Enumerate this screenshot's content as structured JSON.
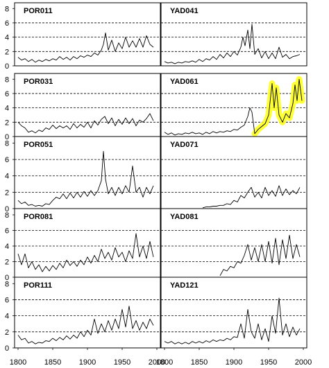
{
  "chart_data": {
    "type": "line",
    "layout": "5 rows x 2 columns of small multiples with shared axes",
    "x_ticks": [
      1800,
      1850,
      1900,
      1950,
      2000
    ],
    "y_ticks": [
      0,
      2,
      4,
      6,
      8
    ],
    "xlim": [
      1795,
      2005
    ],
    "ylim": [
      0,
      8.8
    ],
    "grid": "dashed horizontal lines at y = 2, 4, 6",
    "highlight_color": "#ffff22",
    "panels": [
      {
        "title": "POR011",
        "x": [
          1800,
          1805,
          1810,
          1815,
          1820,
          1825,
          1830,
          1835,
          1840,
          1845,
          1850,
          1855,
          1860,
          1865,
          1870,
          1875,
          1880,
          1885,
          1890,
          1895,
          1900,
          1905,
          1910,
          1915,
          1920,
          1923,
          1926,
          1930,
          1935,
          1940,
          1945,
          1950,
          1955,
          1960,
          1965,
          1970,
          1975,
          1980,
          1985,
          1990,
          1995
        ],
        "y": [
          1.2,
          0.8,
          1.0,
          0.6,
          0.9,
          0.5,
          0.8,
          0.6,
          0.9,
          0.7,
          1.0,
          0.8,
          1.3,
          0.9,
          1.2,
          0.8,
          1.3,
          1.0,
          1.4,
          1.2,
          1.5,
          1.3,
          1.8,
          1.5,
          2.2,
          3.0,
          4.6,
          2.2,
          3.6,
          2.0,
          3.2,
          2.4,
          4.0,
          2.6,
          3.5,
          2.6,
          3.8,
          2.6,
          4.2,
          3.0,
          2.6
        ]
      },
      {
        "title": "YAD041",
        "x": [
          1800,
          1805,
          1810,
          1815,
          1820,
          1825,
          1830,
          1835,
          1840,
          1845,
          1850,
          1855,
          1860,
          1865,
          1870,
          1875,
          1880,
          1885,
          1890,
          1895,
          1900,
          1905,
          1910,
          1913,
          1916,
          1920,
          1923,
          1926,
          1930,
          1935,
          1940,
          1945,
          1950,
          1955,
          1960,
          1965,
          1970,
          1975,
          1980,
          1985,
          1990,
          1995
        ],
        "y": [
          0.6,
          0.4,
          0.5,
          0.3,
          0.5,
          0.4,
          0.6,
          0.5,
          0.7,
          0.5,
          0.9,
          0.6,
          1.0,
          0.8,
          1.3,
          0.9,
          1.6,
          1.1,
          1.8,
          1.3,
          2.0,
          1.5,
          2.6,
          4.0,
          2.8,
          5.0,
          2.4,
          5.8,
          1.6,
          2.4,
          1.1,
          2.0,
          1.0,
          1.8,
          1.0,
          2.6,
          1.2,
          1.6,
          1.0,
          1.3,
          1.4,
          1.6
        ]
      },
      {
        "title": "POR031",
        "x": [
          1800,
          1805,
          1810,
          1815,
          1820,
          1825,
          1830,
          1835,
          1840,
          1845,
          1850,
          1855,
          1860,
          1865,
          1870,
          1875,
          1880,
          1885,
          1890,
          1895,
          1900,
          1905,
          1910,
          1915,
          1920,
          1925,
          1930,
          1935,
          1940,
          1945,
          1950,
          1955,
          1960,
          1965,
          1970,
          1975,
          1980,
          1985,
          1990,
          1995
        ],
        "y": [
          2.0,
          1.5,
          1.2,
          0.6,
          0.8,
          0.5,
          0.9,
          0.7,
          1.2,
          1.0,
          1.6,
          1.1,
          1.5,
          1.2,
          1.5,
          1.0,
          1.8,
          1.2,
          1.7,
          1.3,
          2.0,
          1.2,
          2.2,
          1.6,
          2.4,
          2.8,
          1.8,
          2.6,
          1.5,
          2.4,
          1.7,
          2.6,
          1.8,
          2.5,
          1.5,
          2.3,
          2.0,
          2.5,
          3.2,
          2.2
        ]
      },
      {
        "title": "YAD061",
        "x": [
          1800,
          1805,
          1810,
          1815,
          1820,
          1825,
          1830,
          1835,
          1840,
          1845,
          1850,
          1855,
          1860,
          1865,
          1870,
          1875,
          1880,
          1885,
          1890,
          1895,
          1900,
          1905,
          1910,
          1915,
          1920,
          1923,
          1926,
          1930,
          1935,
          1940,
          1945,
          1950,
          1955,
          1958,
          1961,
          1965,
          1970,
          1975,
          1980,
          1985,
          1988,
          1991,
          1994,
          1998
        ],
        "y": [
          0.6,
          0.3,
          0.5,
          0.2,
          0.4,
          0.3,
          0.5,
          0.4,
          0.6,
          0.4,
          0.5,
          0.3,
          0.6,
          0.4,
          0.7,
          0.5,
          0.7,
          0.6,
          0.8,
          0.7,
          1.0,
          0.9,
          1.3,
          1.6,
          2.8,
          4.0,
          3.4,
          0.4,
          1.0,
          1.4,
          1.8,
          3.0,
          7.4,
          4.0,
          6.8,
          3.0,
          2.0,
          3.2,
          2.6,
          4.6,
          7.2,
          5.0,
          8.0,
          5.0
        ]
      },
      {
        "title": "POR051",
        "x": [
          1800,
          1805,
          1810,
          1815,
          1820,
          1825,
          1830,
          1835,
          1840,
          1845,
          1850,
          1855,
          1860,
          1865,
          1870,
          1875,
          1880,
          1885,
          1890,
          1895,
          1900,
          1905,
          1910,
          1915,
          1920,
          1923,
          1926,
          1930,
          1935,
          1940,
          1945,
          1950,
          1955,
          1960,
          1965,
          1970,
          1975,
          1980,
          1985,
          1990,
          1995
        ],
        "y": [
          1.0,
          0.6,
          0.8,
          0.4,
          0.5,
          0.3,
          0.4,
          0.3,
          0.6,
          0.5,
          1.0,
          1.4,
          1.2,
          1.8,
          1.2,
          1.9,
          1.3,
          2.0,
          1.4,
          2.1,
          1.5,
          2.2,
          1.6,
          2.2,
          3.4,
          7.0,
          3.6,
          1.8,
          2.6,
          1.6,
          2.6,
          1.8,
          2.8,
          2.0,
          5.2,
          2.0,
          2.6,
          1.4,
          2.6,
          1.8,
          2.8
        ]
      },
      {
        "title": "YAD071",
        "x": [
          1855,
          1860,
          1865,
          1870,
          1875,
          1880,
          1885,
          1890,
          1895,
          1900,
          1905,
          1910,
          1915,
          1920,
          1925,
          1930,
          1935,
          1940,
          1945,
          1950,
          1955,
          1960,
          1965,
          1970,
          1975,
          1980,
          1985,
          1990,
          1995
        ],
        "y": [
          0.1,
          0.2,
          0.2,
          0.3,
          0.3,
          0.4,
          0.4,
          0.6,
          0.5,
          1.0,
          0.8,
          1.6,
          1.3,
          2.0,
          2.6,
          1.4,
          2.0,
          1.3,
          2.6,
          1.6,
          2.2,
          1.5,
          2.8,
          1.6,
          2.4,
          1.7,
          2.2,
          1.8,
          2.6
        ]
      },
      {
        "title": "POR081",
        "x": [
          1800,
          1805,
          1810,
          1815,
          1820,
          1825,
          1830,
          1835,
          1840,
          1845,
          1850,
          1855,
          1860,
          1865,
          1870,
          1875,
          1880,
          1885,
          1890,
          1895,
          1900,
          1905,
          1910,
          1915,
          1920,
          1925,
          1930,
          1935,
          1940,
          1945,
          1950,
          1955,
          1960,
          1965,
          1970,
          1975,
          1980,
          1985,
          1990,
          1995
        ],
        "y": [
          3.0,
          1.6,
          3.0,
          1.2,
          2.0,
          1.0,
          1.6,
          0.7,
          1.4,
          0.8,
          1.5,
          1.0,
          1.8,
          1.2,
          2.2,
          1.5,
          2.0,
          1.4,
          2.2,
          1.6,
          2.6,
          1.8,
          2.8,
          2.0,
          3.6,
          2.4,
          3.2,
          2.2,
          3.8,
          2.6,
          3.2,
          2.0,
          3.4,
          2.4,
          5.6,
          2.6,
          4.0,
          2.4,
          4.6,
          2.6
        ]
      },
      {
        "title": "YAD081",
        "x": [
          1880,
          1885,
          1890,
          1895,
          1900,
          1905,
          1910,
          1915,
          1920,
          1925,
          1930,
          1935,
          1940,
          1945,
          1950,
          1955,
          1960,
          1965,
          1970,
          1975,
          1980,
          1985,
          1990,
          1995
        ],
        "y": [
          0.2,
          1.0,
          0.8,
          1.4,
          1.2,
          2.0,
          1.8,
          2.8,
          4.2,
          2.2,
          3.8,
          2.0,
          4.2,
          2.0,
          4.6,
          1.8,
          5.0,
          1.6,
          4.8,
          2.4,
          5.4,
          2.4,
          4.2,
          2.6
        ]
      },
      {
        "title": "POR111",
        "x": [
          1800,
          1805,
          1810,
          1815,
          1820,
          1825,
          1830,
          1835,
          1840,
          1845,
          1850,
          1855,
          1860,
          1865,
          1870,
          1875,
          1880,
          1885,
          1890,
          1895,
          1900,
          1905,
          1910,
          1915,
          1920,
          1925,
          1930,
          1935,
          1940,
          1945,
          1950,
          1955,
          1960,
          1965,
          1970,
          1975,
          1980,
          1985,
          1990,
          1995
        ],
        "y": [
          1.6,
          1.0,
          1.2,
          0.6,
          0.8,
          0.5,
          0.7,
          0.6,
          0.9,
          0.8,
          1.2,
          0.9,
          1.3,
          1.0,
          1.5,
          1.1,
          1.6,
          1.2,
          2.0,
          1.4,
          2.2,
          1.6,
          3.6,
          1.8,
          3.0,
          2.0,
          3.4,
          2.2,
          3.6,
          2.4,
          4.8,
          2.6,
          5.2,
          2.4,
          3.4,
          2.2,
          3.2,
          2.4,
          3.6,
          2.8
        ]
      },
      {
        "title": "YAD121",
        "x": [
          1800,
          1805,
          1810,
          1815,
          1820,
          1825,
          1830,
          1835,
          1840,
          1845,
          1850,
          1855,
          1860,
          1865,
          1870,
          1875,
          1880,
          1885,
          1890,
          1895,
          1900,
          1905,
          1910,
          1915,
          1920,
          1925,
          1930,
          1935,
          1940,
          1945,
          1950,
          1955,
          1960,
          1965,
          1970,
          1975,
          1980,
          1985,
          1990,
          1995
        ],
        "y": [
          0.8,
          0.6,
          0.8,
          0.5,
          0.7,
          0.5,
          0.7,
          0.5,
          0.8,
          0.6,
          0.8,
          0.6,
          0.9,
          0.7,
          1.0,
          0.8,
          1.0,
          0.9,
          1.2,
          1.0,
          1.4,
          1.3,
          3.0,
          1.2,
          4.8,
          2.0,
          1.2,
          3.0,
          1.0,
          2.4,
          0.8,
          4.0,
          1.8,
          6.2,
          1.6,
          3.0,
          1.4,
          2.6,
          1.6,
          2.4
        ]
      }
    ]
  }
}
